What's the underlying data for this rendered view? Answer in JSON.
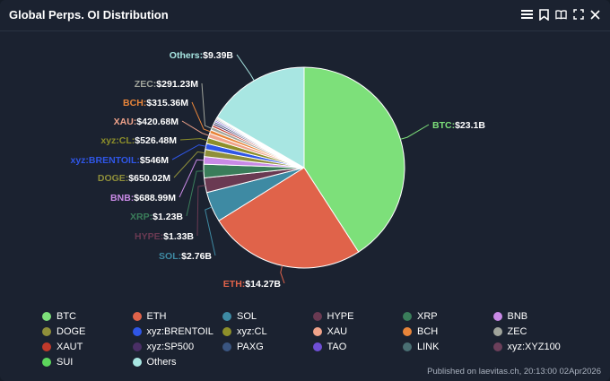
{
  "header": {
    "title": "Global Perps. OI Distribution",
    "tools": [
      "menu-icon",
      "bookmark-icon",
      "book-icon",
      "fullscreen-icon",
      "close-icon"
    ]
  },
  "footer": {
    "published": "Published on laevitas.ch, 20:13:00 02Apr2026"
  },
  "chart_data": {
    "type": "pie",
    "title": "Global Perps. OI Distribution",
    "slices": [
      {
        "name": "BTC",
        "value": 23.1,
        "label": "BTC:",
        "value_label": "$23.1B",
        "color": "#7de07a"
      },
      {
        "name": "ETH",
        "value": 14.27,
        "label": "ETH:",
        "value_label": "$14.27B",
        "color": "#e0634a"
      },
      {
        "name": "SOL",
        "value": 2.76,
        "label": "SOL:",
        "value_label": "$2.76B",
        "color": "#3e8aa3"
      },
      {
        "name": "HYPE",
        "value": 1.33,
        "label": "HYPE:",
        "value_label": "$1.33B",
        "color": "#6a3a52"
      },
      {
        "name": "XRP",
        "value": 1.23,
        "label": "XRP:",
        "value_label": "$1.23B",
        "color": "#3a7d5a"
      },
      {
        "name": "BNB",
        "value": 0.68899,
        "label": "BNB:",
        "value_label": "$688.99M",
        "color": "#c98ae6"
      },
      {
        "name": "DOGE",
        "value": 0.65002,
        "label": "DOGE:",
        "value_label": "$650.02M",
        "color": "#8f8f3a"
      },
      {
        "name": "xyz:BRENTOIL",
        "value": 0.546,
        "label": "xyz:BRENTOIL:",
        "value_label": "$546M",
        "color": "#2f56e6"
      },
      {
        "name": "xyz:CL",
        "value": 0.52648,
        "label": "xyz:CL:",
        "value_label": "$526.48M",
        "color": "#8d8f2a"
      },
      {
        "name": "XAU",
        "value": 0.42068,
        "label": "XAU:",
        "value_label": "$420.68M",
        "color": "#f0a38a"
      },
      {
        "name": "BCH",
        "value": 0.31536,
        "label": "BCH:",
        "value_label": "$315.36M",
        "color": "#e8853a"
      },
      {
        "name": "ZEC",
        "value": 0.29123,
        "label": "ZEC:",
        "value_label": "$291.23M",
        "color": "#a0a49b"
      },
      {
        "name": "XAUT",
        "value": 0.2,
        "color": "#c0392b"
      },
      {
        "name": "xyz:SP500",
        "value": 0.18,
        "color": "#4a2f66"
      },
      {
        "name": "PAXG",
        "value": 0.16,
        "color": "#3a5580"
      },
      {
        "name": "TAO",
        "value": 0.14,
        "color": "#6f4fd6"
      },
      {
        "name": "LINK",
        "value": 0.12,
        "color": "#4a6f73"
      },
      {
        "name": "xyz:XYZ100",
        "value": 0.1,
        "color": "#6b3f5a"
      },
      {
        "name": "SUI",
        "value": 0.09,
        "color": "#5cd65c"
      },
      {
        "name": "Others",
        "value": 9.39,
        "label": "Others:",
        "value_label": "$9.39B",
        "color": "#a8e6e2"
      }
    ]
  }
}
